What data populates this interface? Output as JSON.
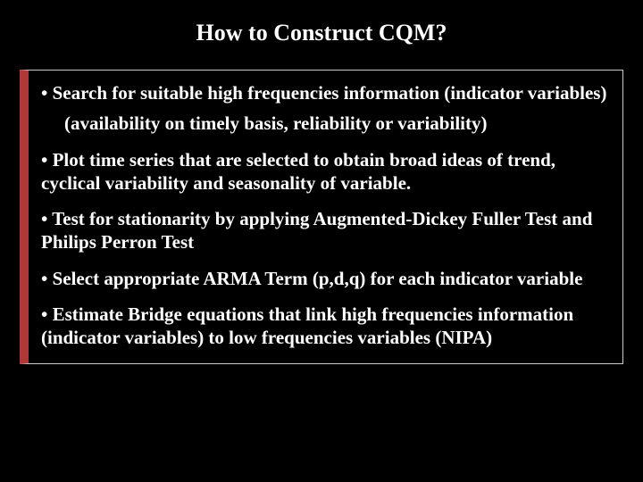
{
  "slide": {
    "title": "How to Construct CQM?",
    "background_color": "#000000",
    "text_color": "#ffffff",
    "accent_border_color": "#b03838",
    "box_border_color": "#cccccc",
    "title_fontsize": 26,
    "body_fontsize": 21,
    "font_family": "Times New Roman",
    "bullets": [
      {
        "text": "• Search for suitable high frequencies information (indicator variables)",
        "subtext": "(availability on timely basis, reliability or variability)"
      },
      {
        "text": "• Plot time series that are selected to obtain broad ideas of trend, cyclical variability and seasonality of variable."
      },
      {
        "text": "• Test for stationarity by applying Augmented-Dickey Fuller Test and Philips Perron Test"
      },
      {
        "text": "• Select appropriate ARMA Term (p,d,q) for each indicator variable"
      },
      {
        "text": "• Estimate Bridge equations that link high frequencies information (indicator variables) to low frequencies variables (NIPA)"
      }
    ]
  }
}
